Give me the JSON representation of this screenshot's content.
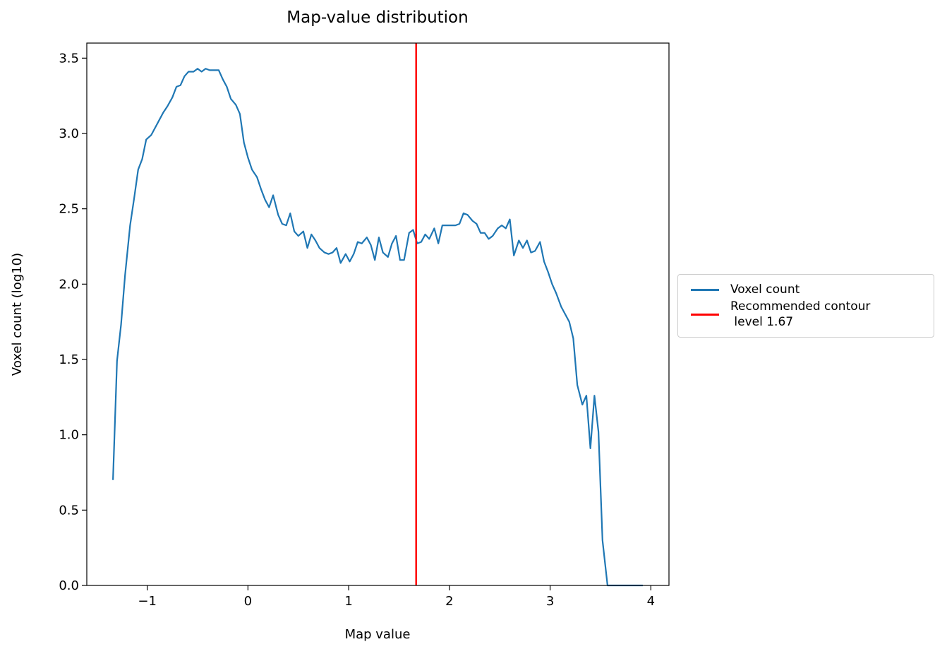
{
  "chart_data": {
    "type": "line",
    "title": "Map-value distribution",
    "xlabel": "Map value",
    "ylabel": "Voxel count (log10)",
    "x": [
      -1.34,
      -1.3,
      -1.26,
      -1.22,
      -1.17,
      -1.13,
      -1.09,
      -1.05,
      -1.01,
      -0.96,
      -0.92,
      -0.88,
      -0.84,
      -0.8,
      -0.75,
      -0.71,
      -0.67,
      -0.63,
      -0.59,
      -0.54,
      -0.5,
      -0.46,
      -0.42,
      -0.38,
      -0.33,
      -0.29,
      -0.25,
      -0.21,
      -0.17,
      -0.12,
      -0.08,
      -0.04,
      0.0,
      0.04,
      0.09,
      0.13,
      0.17,
      0.21,
      0.25,
      0.3,
      0.34,
      0.38,
      0.42,
      0.46,
      0.5,
      0.55,
      0.59,
      0.63,
      0.67,
      0.71,
      0.76,
      0.8,
      0.84,
      0.88,
      0.92,
      0.97,
      1.01,
      1.05,
      1.09,
      1.13,
      1.18,
      1.22,
      1.26,
      1.3,
      1.34,
      1.39,
      1.43,
      1.47,
      1.51,
      1.55,
      1.6,
      1.64,
      1.68,
      1.72,
      1.76,
      1.8,
      1.85,
      1.89,
      1.93,
      1.97,
      2.02,
      2.06,
      2.1,
      2.14,
      2.18,
      2.23,
      2.27,
      2.31,
      2.35,
      2.39,
      2.43,
      2.48,
      2.52,
      2.56,
      2.6,
      2.64,
      2.69,
      2.73,
      2.77,
      2.81,
      2.85,
      2.9,
      2.94,
      2.98,
      3.02,
      3.06,
      3.11,
      3.15,
      3.19,
      3.23,
      3.27,
      3.32,
      3.36,
      3.4,
      3.44,
      3.48,
      3.52,
      3.57,
      3.65,
      3.75,
      3.85,
      3.92
    ],
    "series": [
      {
        "name": "Voxel count",
        "color": "#1f77b4",
        "values": [
          0.7,
          1.49,
          1.73,
          2.06,
          2.39,
          2.57,
          2.76,
          2.83,
          2.96,
          2.99,
          3.04,
          3.09,
          3.14,
          3.18,
          3.24,
          3.31,
          3.32,
          3.38,
          3.41,
          3.41,
          3.43,
          3.41,
          3.43,
          3.42,
          3.42,
          3.42,
          3.36,
          3.31,
          3.23,
          3.19,
          3.13,
          2.94,
          2.84,
          2.76,
          2.71,
          2.63,
          2.56,
          2.51,
          2.59,
          2.46,
          2.4,
          2.39,
          2.47,
          2.35,
          2.32,
          2.35,
          2.24,
          2.33,
          2.29,
          2.24,
          2.21,
          2.2,
          2.21,
          2.24,
          2.14,
          2.2,
          2.15,
          2.2,
          2.28,
          2.27,
          2.31,
          2.26,
          2.16,
          2.31,
          2.21,
          2.18,
          2.27,
          2.32,
          2.16,
          2.16,
          2.34,
          2.36,
          2.27,
          2.28,
          2.33,
          2.3,
          2.37,
          2.27,
          2.39,
          2.39,
          2.39,
          2.39,
          2.4,
          2.47,
          2.46,
          2.42,
          2.4,
          2.34,
          2.34,
          2.3,
          2.32,
          2.37,
          2.39,
          2.37,
          2.43,
          2.19,
          2.29,
          2.24,
          2.29,
          2.21,
          2.22,
          2.28,
          2.15,
          2.08,
          2.0,
          1.94,
          1.85,
          1.8,
          1.75,
          1.64,
          1.33,
          1.2,
          1.26,
          0.91,
          1.26,
          1.02,
          0.3,
          0.0,
          0.0,
          0.0,
          0.0,
          0.0
        ]
      }
    ],
    "vlines": [
      {
        "name": "Recommended contour\n level 1.67",
        "x": 1.67,
        "color": "#ff0000"
      }
    ],
    "xlim": [
      -1.6,
      4.18
    ],
    "ylim": [
      0,
      3.6
    ],
    "xticks": [
      {
        "value": -1,
        "label": "−1"
      },
      0,
      1,
      2,
      3,
      4
    ],
    "yticks": [
      {
        "value": 0,
        "label": "0.0"
      },
      0.5,
      {
        "value": 1,
        "label": "1.0"
      },
      1.5,
      {
        "value": 2,
        "label": "2.0"
      },
      2.5,
      {
        "value": 3,
        "label": "3.0"
      },
      3.5
    ],
    "legend": "center right outside"
  }
}
